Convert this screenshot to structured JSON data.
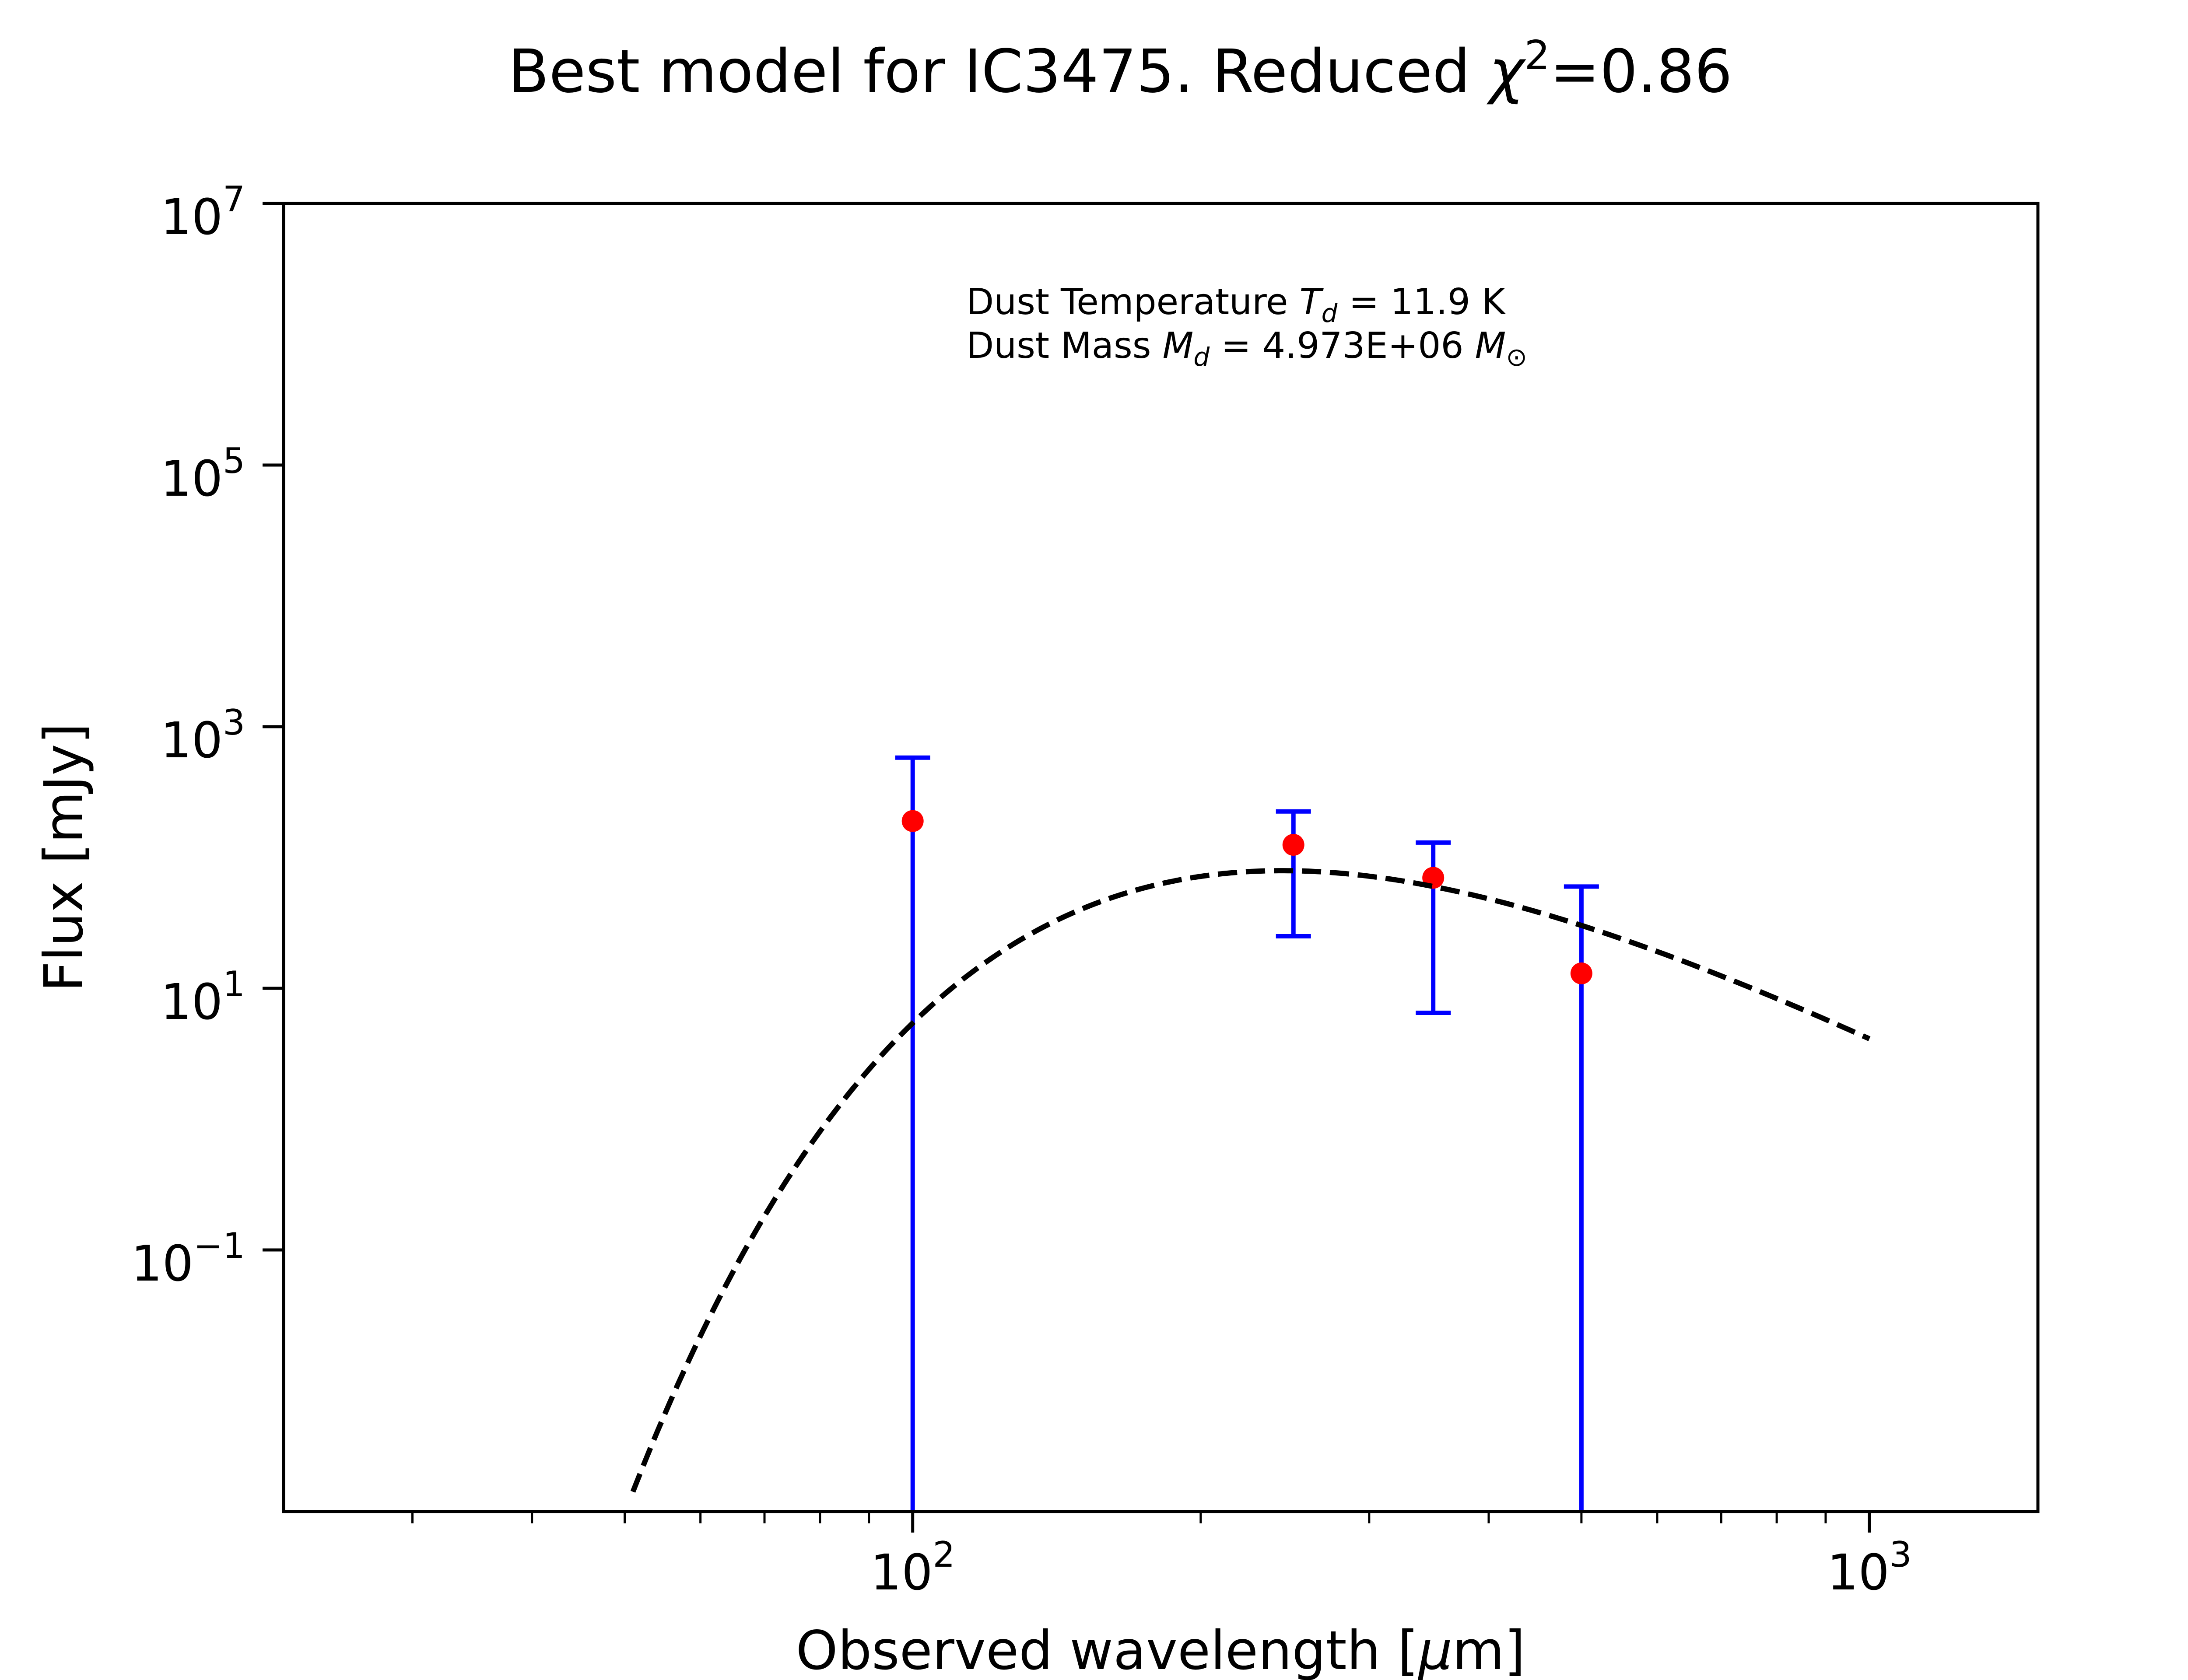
{
  "chart_data": {
    "type": "scatter",
    "title": {
      "prefix": "Best model for IC3475. Reduced ",
      "symbol": "χ",
      "superscript": "2",
      "suffix": "=0.86"
    },
    "xlabel": {
      "prefix": "Observed wavelength [",
      "symbol": "μ",
      "suffix": "m]"
    },
    "ylabel": "Flux [mJy]",
    "x_scale": "log",
    "y_scale": "log",
    "xlim": [
      22,
      1500
    ],
    "ylim": [
      0.001,
      10000000
    ],
    "grid": false,
    "x_ticks": [
      {
        "value": 100,
        "base": "10",
        "exp": "2"
      },
      {
        "value": 1000,
        "base": "10",
        "exp": "3"
      }
    ],
    "y_ticks": [
      {
        "value": 0.1,
        "base": "10",
        "exp": "−1"
      },
      {
        "value": 10,
        "base": "10",
        "exp": "1"
      },
      {
        "value": 1000,
        "base": "10",
        "exp": "3"
      },
      {
        "value": 100000,
        "base": "10",
        "exp": "5"
      },
      {
        "value": 10000000,
        "base": "10",
        "exp": "7"
      }
    ],
    "annotations": [
      {
        "text": "Dust Temperature ",
        "symbol": "T",
        "sub": "d",
        "rest": " = 11.9 K"
      },
      {
        "text": "Dust Mass ",
        "symbol": "M",
        "sub": "d",
        "rest": " = 4.973E+06 ",
        "unit_symbol": "M",
        "unit_sub": "⊙"
      }
    ],
    "series": [
      {
        "type": "errorbar",
        "color_marker": "#ff0000",
        "color_errorbar": "#0000ff",
        "points": [
          {
            "x": 100,
            "y": 190,
            "yerr_low": 0.001,
            "yerr_high": 580
          },
          {
            "x": 250,
            "y": 125,
            "yerr_low": 25,
            "yerr_high": 225
          },
          {
            "x": 350,
            "y": 70,
            "yerr_low": 6.5,
            "yerr_high": 130
          },
          {
            "x": 500,
            "y": 13,
            "yerr_low": 0.001,
            "yerr_high": 60
          }
        ]
      },
      {
        "type": "line",
        "style": "dashed",
        "color": "#000000",
        "temperature_K": 11.9,
        "x_range": [
          51,
          1000
        ],
        "peak_x": 265,
        "peak_y": 78
      }
    ]
  }
}
